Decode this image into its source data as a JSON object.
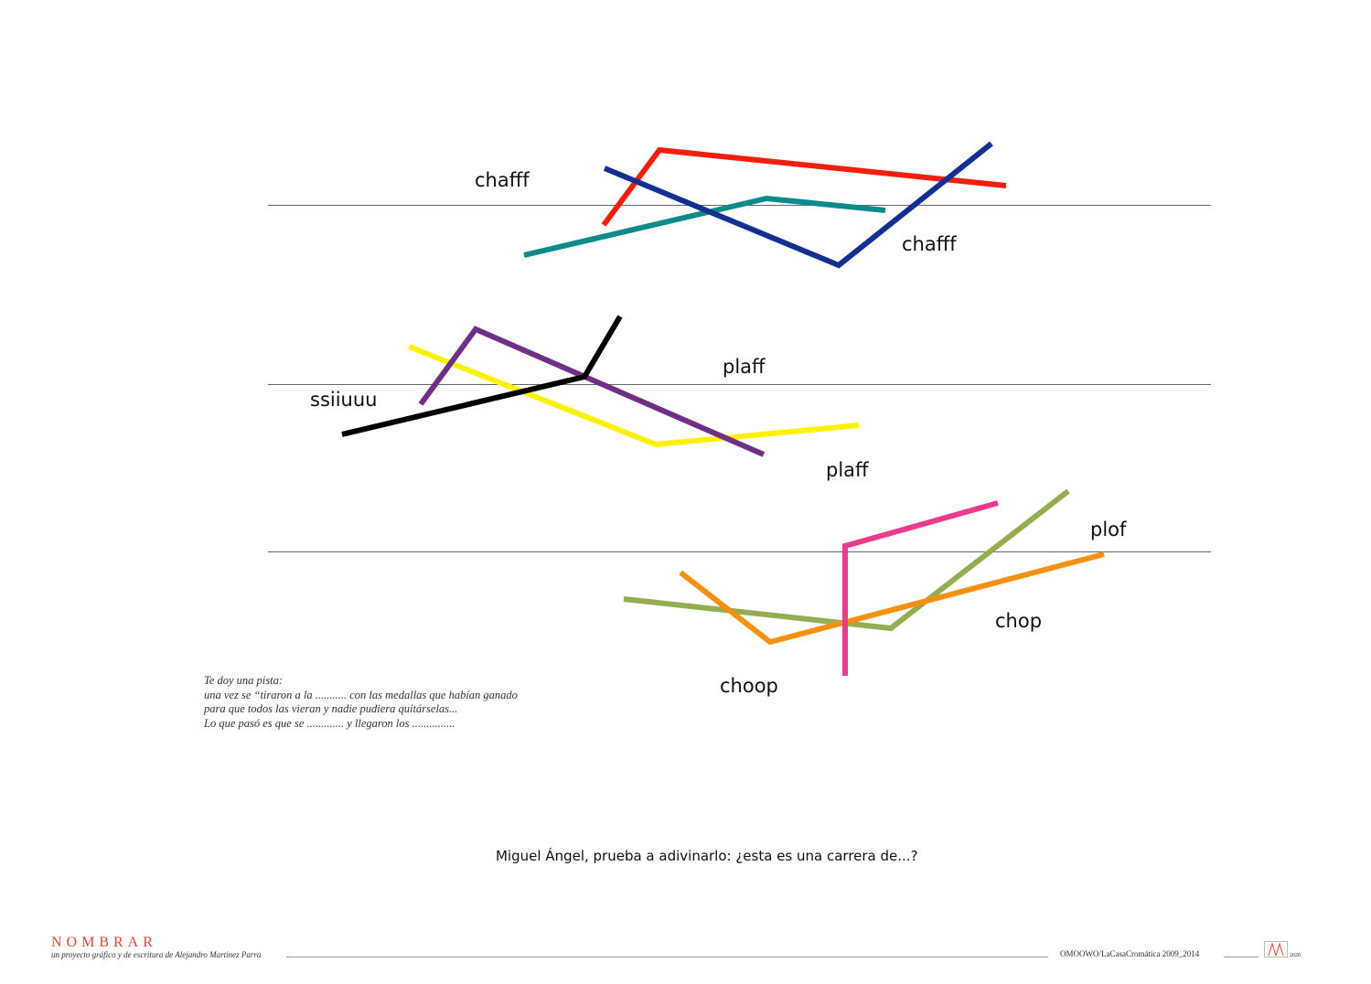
{
  "words": {
    "chafff_top": "chafff",
    "chafff_right": "chafff",
    "plaff_top": "plaff",
    "ssiiuuu": "ssiiuuu",
    "plaff_bottom": "plaff",
    "plof": "plof",
    "chop": "chop",
    "choop": "choop"
  },
  "hint": {
    "line1": "Te doy una pista:",
    "line2": "una vez se “tiraron  a la ........... con las medallas que habían ganado",
    "line3": "para que todos las vieran y nadie pudiera quitárselas...",
    "line4": "Lo que pasó es que se ............. y llegaron los ..............."
  },
  "question": "Miguel Ángel, prueba a adivinarlo:  ¿esta es una carrera de...?",
  "footer": {
    "brand": "NOMBRAR",
    "subtitle": "un proyecto gráfico y de escritura de Alejandro Martínez Parra",
    "credit": "OMOOWO/LaCasaCromática 2009_2014",
    "year": "2020"
  },
  "colors": {
    "red": "#f41e0d",
    "navy": "#12308f",
    "teal": "#0d8a8a",
    "purple": "#6f2f86",
    "yellow": "#fff200",
    "black": "#000000",
    "pink": "#ec3b8c",
    "olive": "#93ad4f",
    "orange": "#f7900f",
    "brand": "#e8462a"
  }
}
